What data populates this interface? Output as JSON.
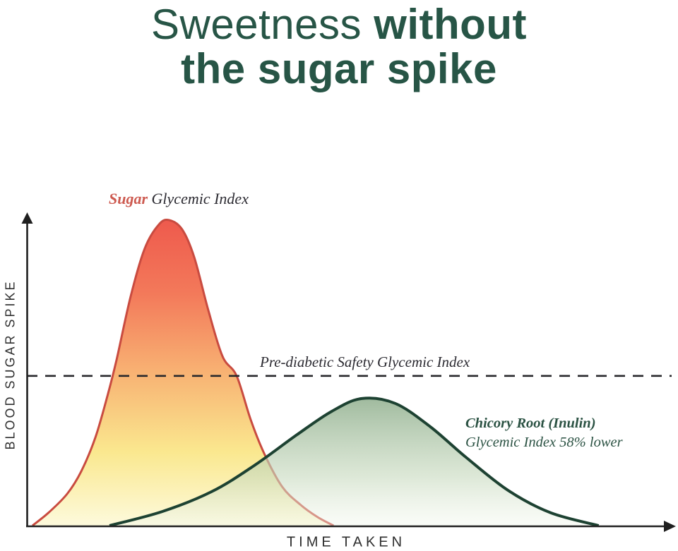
{
  "title": {
    "light": "Sweetness",
    "bold": "without",
    "line2": "the sugar spike"
  },
  "labels": {
    "sugar_highlight": "Sugar",
    "sugar_rest": " Glycemic Index",
    "threshold": "Pre-diabetic Safety Glycemic Index",
    "chicory_line1": "Chicory Root (Inulin)",
    "chicory_line2": "Glycemic Index 58% lower",
    "y_axis": "BLOOD SUGAR SPIKE",
    "x_axis": "TIME TAKEN"
  },
  "colors": {
    "title_green": "#275546",
    "sugar_label_red": "#cd5a50",
    "dark_text": "#2d2c33",
    "chicory_text_green": "#2b5243",
    "axis_line": "#1f1f1f",
    "threshold_line": "#27272b",
    "sugar_stroke": "#c94b40",
    "chicory_stroke": "#1d4232",
    "sugar_gradient": [
      "#ee5a4d",
      "#f3795a",
      "#f8b273",
      "#fae88f",
      "#fdfadc"
    ],
    "chicory_gradient": [
      [
        "#8fae8d",
        0.85
      ],
      [
        "#c8dabf",
        0.62
      ],
      [
        "#f2f7ec",
        0.4
      ]
    ]
  },
  "chart_data": {
    "type": "area",
    "title": "Sweetness without the sugar spike",
    "xlabel": "TIME TAKEN",
    "ylabel": "BLOOD SUGAR SPIKE",
    "x_range": [
      0,
      100
    ],
    "y_range": [
      0,
      110
    ],
    "grid": false,
    "legend_position": "inline-annotations",
    "threshold": {
      "label": "Pre-diabetic Safety Glycemic Index",
      "y": 49,
      "style": "dashed"
    },
    "series": [
      {
        "name": "Sugar Glycemic Index",
        "peak": {
          "x": 21.3,
          "y": 100
        },
        "points": [
          [
            0,
            0
          ],
          [
            2.6,
            4.4
          ],
          [
            5.4,
            10.4
          ],
          [
            7.6,
            17.8
          ],
          [
            9.8,
            28.9
          ],
          [
            11.7,
            42.7
          ],
          [
            13.1,
            54.3
          ],
          [
            15.3,
            75.1
          ],
          [
            17.5,
            90.8
          ],
          [
            19.7,
            98.6
          ],
          [
            21.3,
            100
          ],
          [
            23.3,
            97
          ],
          [
            25.2,
            87.8
          ],
          [
            27.4,
            70.4
          ],
          [
            29.6,
            55.4
          ],
          [
            31.8,
            49
          ],
          [
            34,
            34.6
          ],
          [
            36.2,
            23.1
          ],
          [
            38.9,
            12.7
          ],
          [
            41.7,
            6.9
          ],
          [
            44.4,
            2.8
          ],
          [
            46.9,
            0
          ]
        ]
      },
      {
        "name": "Chicory Root (Inulin) Glycemic Index 58% lower",
        "peak": {
          "x": 51.3,
          "y": 41.6
        },
        "points": [
          [
            12,
            0
          ],
          [
            20.2,
            4.6
          ],
          [
            27.9,
            11.1
          ],
          [
            34.5,
            19.6
          ],
          [
            41.1,
            29.6
          ],
          [
            46.6,
            37.4
          ],
          [
            51.3,
            41.6
          ],
          [
            56.5,
            40
          ],
          [
            62,
            32.3
          ],
          [
            67.5,
            22.4
          ],
          [
            74.1,
            11.5
          ],
          [
            80.7,
            4.2
          ],
          [
            88.2,
            0
          ]
        ]
      }
    ]
  }
}
